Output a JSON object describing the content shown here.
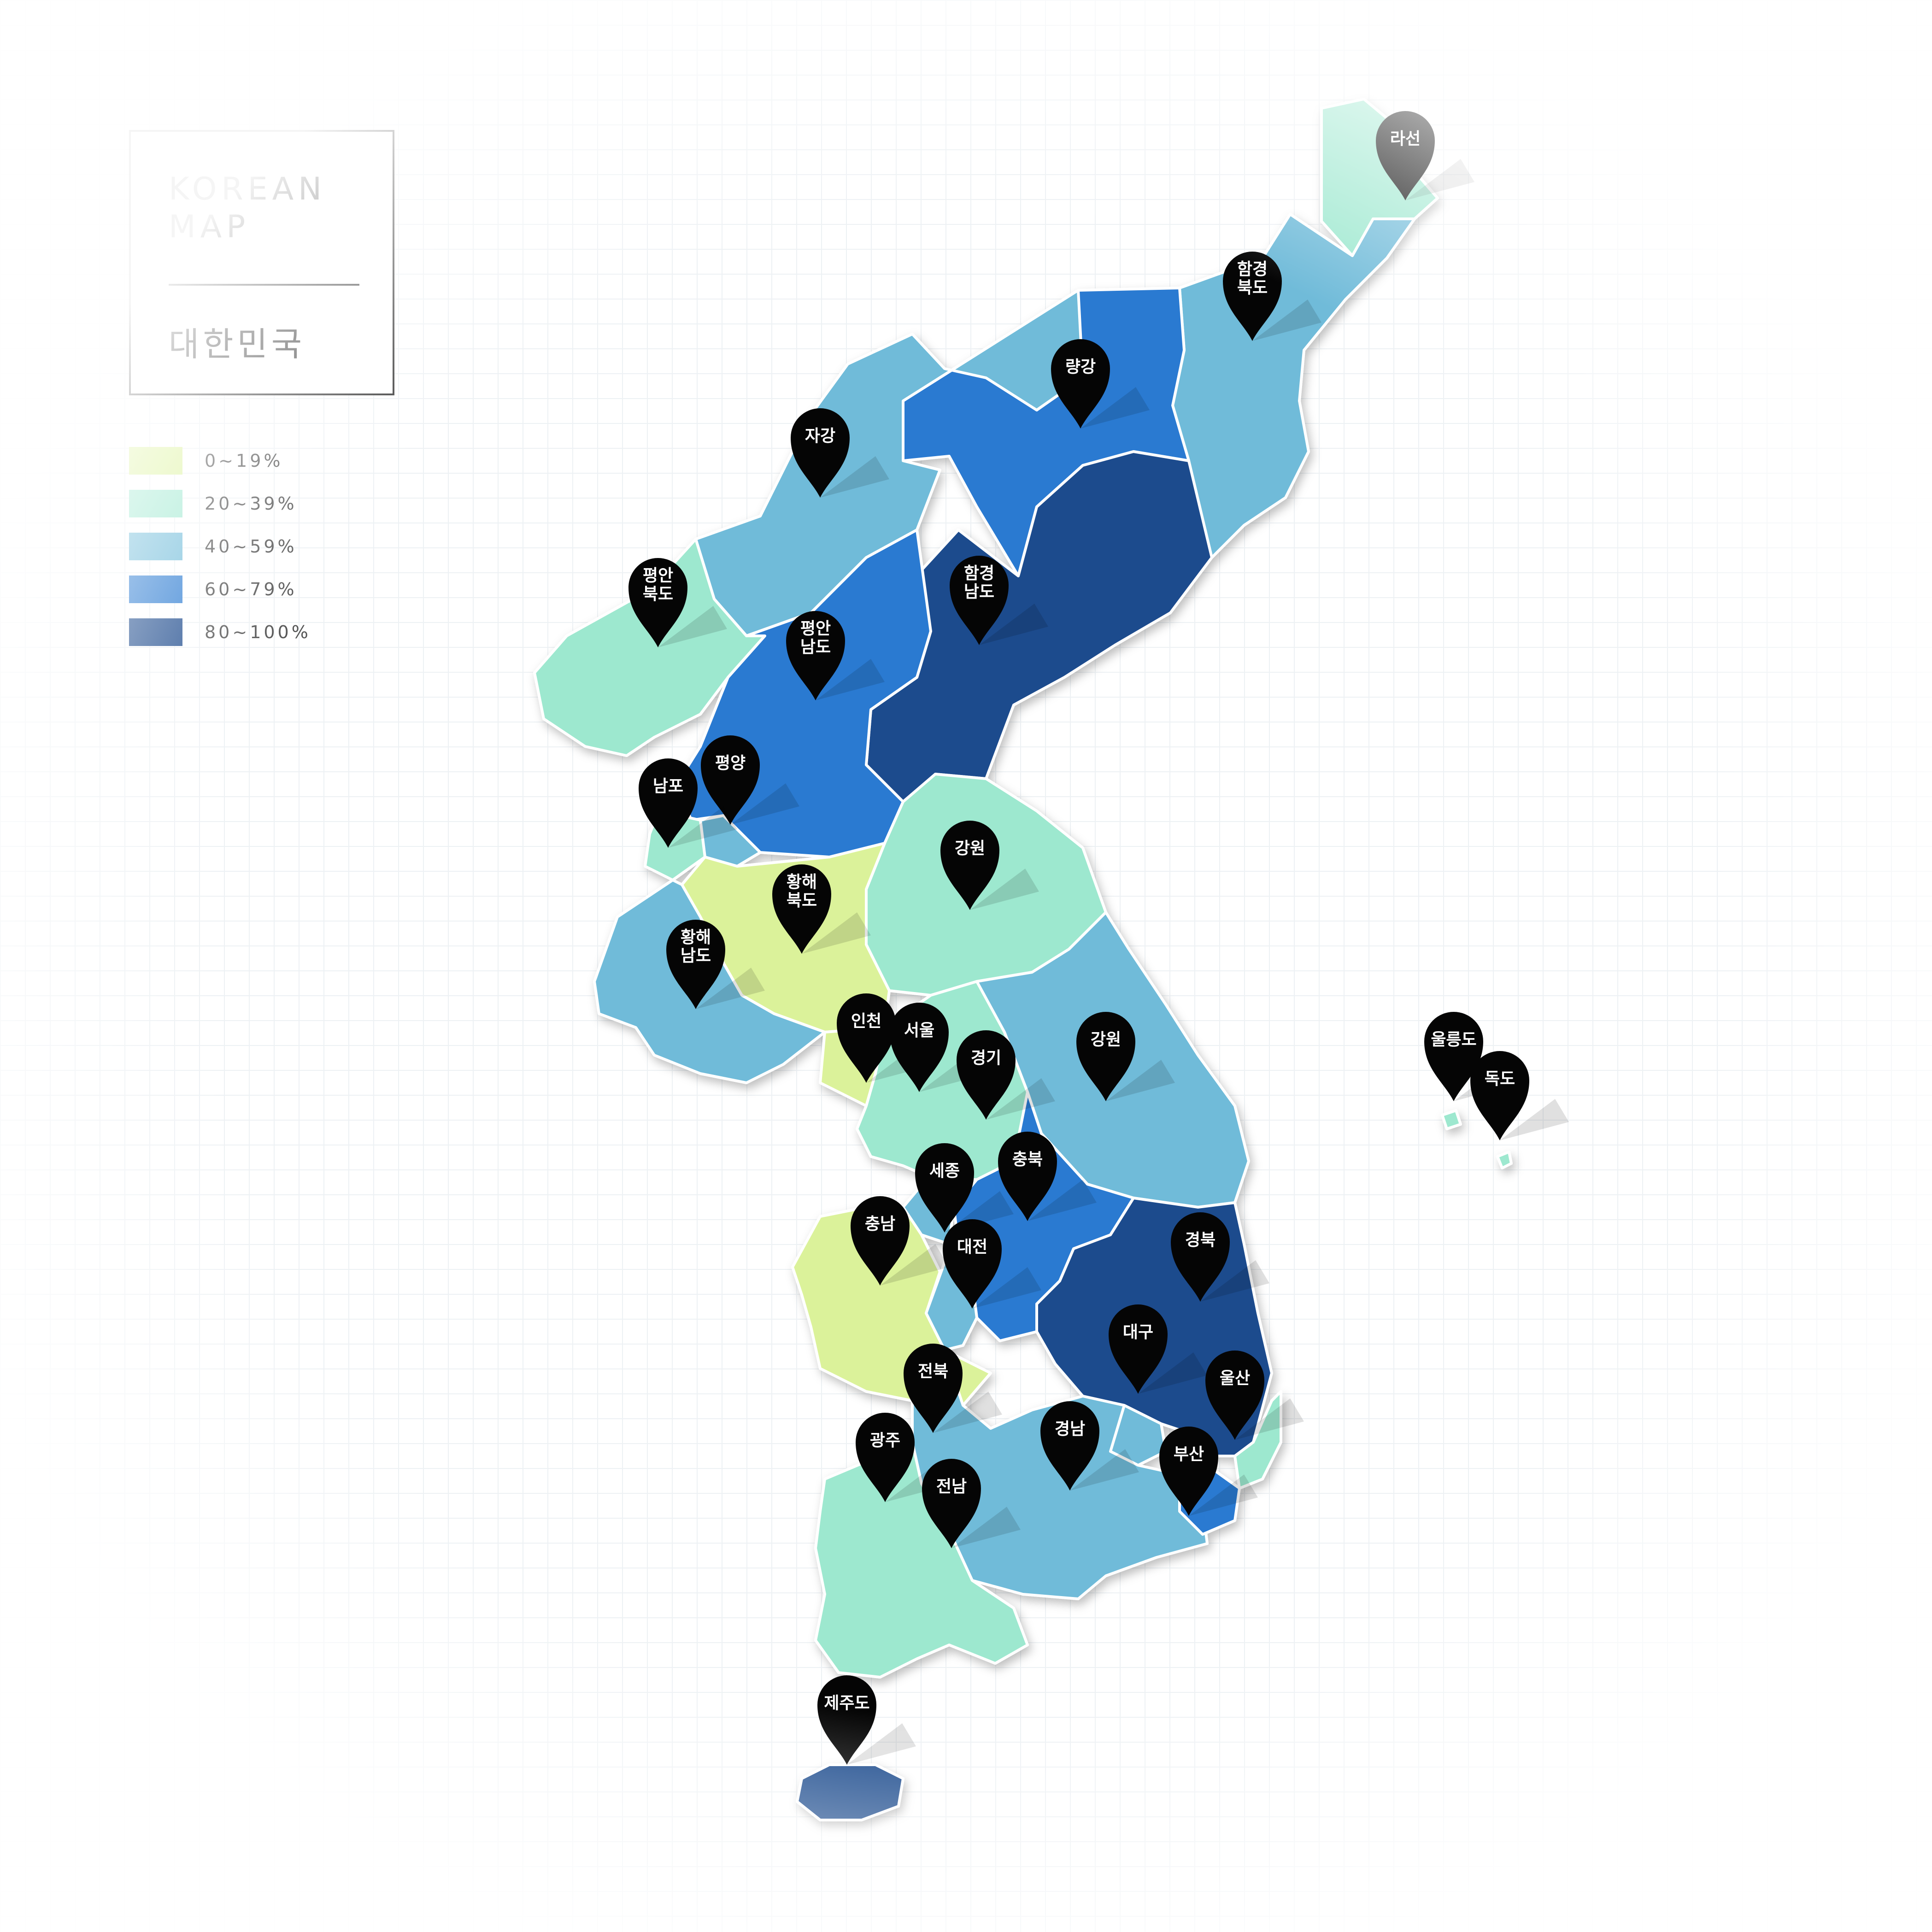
{
  "title": {
    "line1": "KOREAN",
    "line2": "MAP",
    "subtitle": "대한민국"
  },
  "legend": [
    {
      "label": "0~19%",
      "color": "#dbf29a"
    },
    {
      "label": "20~39%",
      "color": "#9de8cf"
    },
    {
      "label": "40~59%",
      "color": "#6fbbd9"
    },
    {
      "label": "60~79%",
      "color": "#2a7ad1"
    },
    {
      "label": "80~100%",
      "color": "#1e4b8d"
    }
  ],
  "regions": [
    {
      "name": "라선",
      "lines": [
        "라선"
      ],
      "color": "#9de8cf"
    },
    {
      "name": "함경북도",
      "lines": [
        "함경",
        "북도"
      ],
      "color": "#6fbbd9"
    },
    {
      "name": "량강",
      "lines": [
        "량강"
      ],
      "color": "#2a7ad1"
    },
    {
      "name": "자강",
      "lines": [
        "자강"
      ],
      "color": "#6fbbd9"
    },
    {
      "name": "함경남도",
      "lines": [
        "함경",
        "남도"
      ],
      "color": "#1e4b8d"
    },
    {
      "name": "평안북도",
      "lines": [
        "평안",
        "북도"
      ],
      "color": "#9de8cf"
    },
    {
      "name": "평안남도",
      "lines": [
        "평안",
        "남도"
      ],
      "color": "#2a7ad1"
    },
    {
      "name": "평양",
      "lines": [
        "평양"
      ],
      "color": "#6fbbd9"
    },
    {
      "name": "남포",
      "lines": [
        "남포"
      ],
      "color": "#9de8cf"
    },
    {
      "name": "강원(북)",
      "lines": [
        "강원"
      ],
      "color": "#9de8cf"
    },
    {
      "name": "황해북도",
      "lines": [
        "황해",
        "북도"
      ],
      "color": "#dbf29a"
    },
    {
      "name": "황해남도",
      "lines": [
        "황해",
        "남도"
      ],
      "color": "#6fbbd9"
    },
    {
      "name": "인천",
      "lines": [
        "인천"
      ],
      "color": "#dbf29a"
    },
    {
      "name": "서울",
      "lines": [
        "서울"
      ],
      "color": "#2a7ad1"
    },
    {
      "name": "경기",
      "lines": [
        "경기"
      ],
      "color": "#9de8cf"
    },
    {
      "name": "강원(남)",
      "lines": [
        "강원"
      ],
      "color": "#6fbbd9"
    },
    {
      "name": "울릉도",
      "lines": [
        "울릉도"
      ],
      "color": "#9de8cf"
    },
    {
      "name": "독도",
      "lines": [
        "독도"
      ],
      "color": "#9de8cf"
    },
    {
      "name": "충북",
      "lines": [
        "충북"
      ],
      "color": "#2a7ad1"
    },
    {
      "name": "세종",
      "lines": [
        "세종"
      ],
      "color": "#6fbbd9"
    },
    {
      "name": "충남",
      "lines": [
        "충남"
      ],
      "color": "#dbf29a"
    },
    {
      "name": "대전",
      "lines": [
        "대전"
      ],
      "color": "#6fbbd9"
    },
    {
      "name": "경북",
      "lines": [
        "경북"
      ],
      "color": "#1e4b8d"
    },
    {
      "name": "대구",
      "lines": [
        "대구"
      ],
      "color": "#6fbbd9"
    },
    {
      "name": "울산",
      "lines": [
        "울산"
      ],
      "color": "#9de8cf"
    },
    {
      "name": "전북",
      "lines": [
        "전북"
      ],
      "color": "#6fbbd9"
    },
    {
      "name": "경남",
      "lines": [
        "경남"
      ],
      "color": "#2a7ad1"
    },
    {
      "name": "부산",
      "lines": [
        "부산"
      ],
      "color": "#6fbbd9"
    },
    {
      "name": "광주",
      "lines": [
        "광주"
      ],
      "color": "#9de8cf"
    },
    {
      "name": "전남",
      "lines": [
        "전남"
      ],
      "color": "#1e4b8d"
    },
    {
      "name": "제주도",
      "lines": [
        "제주도"
      ],
      "color": "#6fbbd9"
    }
  ]
}
